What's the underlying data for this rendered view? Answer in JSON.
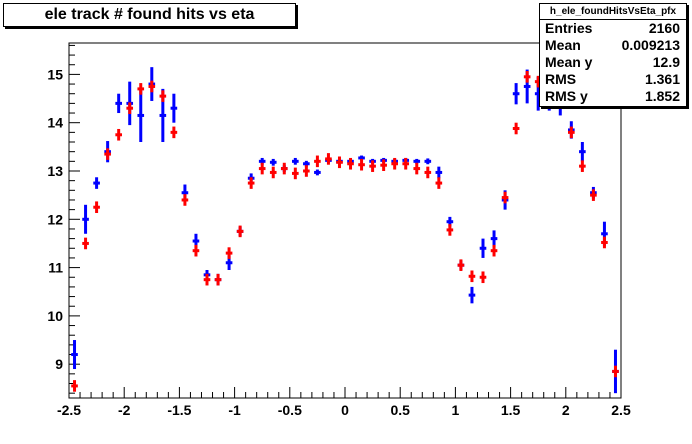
{
  "title": "ele track # found hits vs eta",
  "stats": {
    "name": "h_ele_foundHitsVsEta_pfx",
    "rows": [
      {
        "label": "Entries",
        "value": "2160"
      },
      {
        "label": "Mean",
        "value": "0.009213"
      },
      {
        "label": "Mean y",
        "value": "12.9"
      },
      {
        "label": "RMS",
        "value": "1.361"
      },
      {
        "label": "RMS y",
        "value": "1.852"
      }
    ]
  },
  "chart_data": {
    "type": "scatter",
    "title": "ele track # found hits vs eta",
    "xlabel": "",
    "ylabel": "",
    "xlim": [
      -2.5,
      2.5
    ],
    "ylim": [
      8.3,
      15.65
    ],
    "xticks": [
      "-2.5",
      "-2",
      "-1.5",
      "-1",
      "-0.5",
      "0",
      "0.5",
      "1",
      "1.5",
      "2",
      "2.5"
    ],
    "yticks": [
      "9",
      "10",
      "11",
      "12",
      "13",
      "14",
      "15"
    ],
    "bin_width": 0.1,
    "colors": {
      "blue": "#0000ff",
      "red": "#ff0000"
    },
    "series": [
      {
        "color": "#0000ff",
        "x": [
          -2.45,
          -2.35,
          -2.25,
          -2.15,
          -2.05,
          -1.95,
          -1.85,
          -1.75,
          -1.65,
          -1.55,
          -1.45,
          -1.35,
          -1.25,
          -1.15,
          -1.05,
          -0.95,
          -0.85,
          -0.75,
          -0.65,
          -0.55,
          -0.45,
          -0.35,
          -0.25,
          -0.15,
          -0.05,
          0.05,
          0.15,
          0.25,
          0.35,
          0.45,
          0.55,
          0.65,
          0.75,
          0.85,
          0.95,
          1.05,
          1.15,
          1.25,
          1.35,
          1.45,
          1.55,
          1.65,
          1.75,
          1.85,
          1.95,
          2.05,
          2.15,
          2.25,
          2.35,
          2.45
        ],
        "y": [
          9.2,
          12.0,
          12.75,
          13.4,
          14.4,
          14.4,
          14.15,
          14.8,
          14.15,
          14.3,
          12.55,
          11.55,
          10.85,
          10.75,
          11.1,
          11.75,
          12.85,
          13.2,
          13.18,
          13.05,
          13.2,
          13.15,
          12.97,
          13.22,
          13.2,
          13.2,
          13.27,
          13.2,
          13.22,
          13.2,
          13.22,
          13.2,
          13.2,
          12.97,
          11.95,
          11.05,
          10.43,
          11.4,
          11.6,
          12.4,
          14.6,
          14.75,
          14.6,
          14.55,
          14.45,
          13.85,
          13.4,
          12.55,
          11.7,
          8.85
        ],
        "yerr": [
          0.3,
          0.3,
          0.12,
          0.22,
          0.2,
          0.45,
          0.55,
          0.35,
          0.55,
          0.3,
          0.17,
          0.15,
          0.1,
          0.12,
          0.15,
          0.1,
          0.1,
          0.07,
          0.07,
          0.07,
          0.07,
          0.06,
          0.06,
          0.05,
          0.05,
          0.05,
          0.05,
          0.05,
          0.05,
          0.05,
          0.05,
          0.05,
          0.06,
          0.12,
          0.1,
          0.1,
          0.17,
          0.2,
          0.17,
          0.2,
          0.22,
          0.35,
          0.35,
          0.3,
          0.3,
          0.18,
          0.2,
          0.12,
          0.25,
          0.45
        ]
      },
      {
        "color": "#ff0000",
        "x": [
          -2.45,
          -2.35,
          -2.25,
          -2.15,
          -2.05,
          -1.95,
          -1.85,
          -1.75,
          -1.65,
          -1.55,
          -1.45,
          -1.35,
          -1.25,
          -1.15,
          -1.05,
          -0.95,
          -0.85,
          -0.75,
          -0.65,
          -0.55,
          -0.45,
          -0.35,
          -0.25,
          -0.15,
          -0.05,
          0.05,
          0.15,
          0.25,
          0.35,
          0.45,
          0.55,
          0.65,
          0.75,
          0.85,
          0.95,
          1.05,
          1.15,
          1.25,
          1.35,
          1.45,
          1.55,
          1.65,
          1.75,
          1.85,
          1.95,
          2.05,
          2.15,
          2.25,
          2.35,
          2.45
        ],
        "y": [
          8.55,
          11.5,
          12.25,
          13.35,
          13.75,
          14.3,
          14.7,
          14.75,
          14.55,
          13.8,
          12.4,
          11.35,
          10.75,
          10.75,
          11.3,
          11.75,
          12.75,
          13.05,
          12.97,
          13.05,
          12.95,
          13.0,
          13.2,
          13.25,
          13.18,
          13.15,
          13.13,
          13.1,
          13.12,
          13.15,
          13.15,
          13.05,
          12.97,
          12.75,
          11.78,
          11.05,
          10.82,
          10.8,
          11.35,
          12.45,
          13.88,
          14.95,
          14.85,
          14.7,
          14.5,
          13.8,
          13.1,
          12.5,
          11.52,
          8.85
        ]
      }
    ]
  }
}
